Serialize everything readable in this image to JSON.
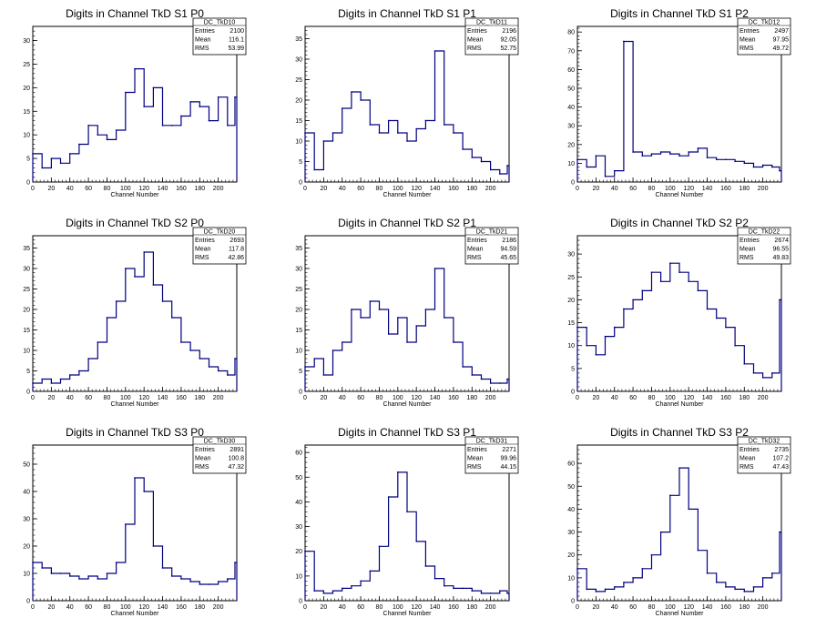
{
  "chart_data": [
    {
      "type": "histogram",
      "title": "Digits in Channel TkD S1 P0",
      "xlabel": "Channel Number",
      "ylabel": "",
      "xlim": [
        0,
        220
      ],
      "ylim": [
        0,
        33
      ],
      "yticks": [
        0,
        5,
        10,
        15,
        20,
        25,
        30
      ],
      "xticks": [
        0,
        20,
        40,
        60,
        80,
        100,
        120,
        140,
        160,
        180,
        200
      ],
      "line_color": "#000080",
      "stats": {
        "name": "DC_TkD10",
        "entries": "2100",
        "mean": "116.1",
        "rms": "53.99"
      },
      "x": [
        0,
        10,
        20,
        30,
        40,
        50,
        60,
        70,
        80,
        90,
        100,
        110,
        120,
        130,
        140,
        150,
        160,
        170,
        180,
        190,
        200,
        210,
        218
      ],
      "y": [
        6,
        3,
        5,
        4,
        6,
        8,
        12,
        10,
        9,
        11,
        19,
        24,
        16,
        20,
        12,
        12,
        14,
        17,
        16,
        13,
        18,
        12,
        18
      ]
    },
    {
      "type": "histogram",
      "title": "Digits in Channel TkD S1 P1",
      "xlabel": "Channel Number",
      "ylabel": "",
      "xlim": [
        0,
        220
      ],
      "ylim": [
        0,
        38
      ],
      "yticks": [
        0,
        5,
        10,
        15,
        20,
        25,
        30,
        35
      ],
      "xticks": [
        0,
        20,
        40,
        60,
        80,
        100,
        120,
        140,
        160,
        180,
        200
      ],
      "line_color": "#000080",
      "stats": {
        "name": "DC_TkD11",
        "entries": "2196",
        "mean": "92.05",
        "rms": "52.75"
      },
      "x": [
        0,
        10,
        20,
        30,
        40,
        50,
        60,
        70,
        80,
        90,
        100,
        110,
        120,
        130,
        140,
        150,
        160,
        170,
        180,
        190,
        200,
        210,
        218
      ],
      "y": [
        12,
        3,
        10,
        12,
        18,
        22,
        20,
        14,
        12,
        15,
        12,
        10,
        13,
        15,
        32,
        14,
        12,
        8,
        6,
        5,
        3,
        2,
        4
      ]
    },
    {
      "type": "histogram",
      "title": "Digits in Channel TkD S1 P2",
      "xlabel": "Channel Number",
      "ylabel": "",
      "xlim": [
        0,
        220
      ],
      "ylim": [
        0,
        83
      ],
      "yticks": [
        0,
        10,
        20,
        30,
        40,
        50,
        60,
        70,
        80
      ],
      "xticks": [
        0,
        20,
        40,
        60,
        80,
        100,
        120,
        140,
        160,
        180,
        200
      ],
      "line_color": "#000080",
      "stats": {
        "name": "DC_TkD12",
        "entries": "2497",
        "mean": "97.95",
        "rms": "49.72"
      },
      "x": [
        0,
        10,
        20,
        30,
        40,
        50,
        60,
        70,
        80,
        90,
        100,
        110,
        120,
        130,
        140,
        150,
        160,
        170,
        180,
        190,
        200,
        210,
        218
      ],
      "y": [
        12,
        8,
        14,
        3,
        6,
        75,
        16,
        14,
        15,
        16,
        15,
        14,
        16,
        18,
        13,
        12,
        12,
        11,
        10,
        8,
        9,
        8,
        6
      ]
    },
    {
      "type": "histogram",
      "title": "Digits in Channel TkD S2 P0",
      "xlabel": "Channel Number",
      "ylabel": "",
      "xlim": [
        0,
        220
      ],
      "ylim": [
        0,
        38
      ],
      "yticks": [
        0,
        5,
        10,
        15,
        20,
        25,
        30,
        35
      ],
      "xticks": [
        0,
        20,
        40,
        60,
        80,
        100,
        120,
        140,
        160,
        180,
        200
      ],
      "line_color": "#000080",
      "stats": {
        "name": "DC_TkD20",
        "entries": "2693",
        "mean": "117.8",
        "rms": "42.86"
      },
      "x": [
        0,
        10,
        20,
        30,
        40,
        50,
        60,
        70,
        80,
        90,
        100,
        110,
        120,
        130,
        140,
        150,
        160,
        170,
        180,
        190,
        200,
        210,
        218
      ],
      "y": [
        2,
        3,
        2,
        3,
        4,
        5,
        8,
        12,
        18,
        22,
        30,
        28,
        34,
        26,
        22,
        18,
        12,
        10,
        8,
        6,
        5,
        4,
        8
      ]
    },
    {
      "type": "histogram",
      "title": "Digits in Channel TkD S2 P1",
      "xlabel": "Channel Number",
      "ylabel": "",
      "xlim": [
        0,
        220
      ],
      "ylim": [
        0,
        38
      ],
      "yticks": [
        0,
        5,
        10,
        15,
        20,
        25,
        30,
        35
      ],
      "xticks": [
        0,
        20,
        40,
        60,
        80,
        100,
        120,
        140,
        160,
        180,
        200
      ],
      "line_color": "#000080",
      "stats": {
        "name": "DC_TkD21",
        "entries": "2186",
        "mean": "94.59",
        "rms": "45.65"
      },
      "x": [
        0,
        10,
        20,
        30,
        40,
        50,
        60,
        70,
        80,
        90,
        100,
        110,
        120,
        130,
        140,
        150,
        160,
        170,
        180,
        190,
        200,
        210,
        218
      ],
      "y": [
        6,
        8,
        4,
        10,
        12,
        20,
        18,
        22,
        20,
        14,
        18,
        12,
        16,
        20,
        30,
        18,
        12,
        6,
        4,
        3,
        2,
        2,
        3
      ]
    },
    {
      "type": "histogram",
      "title": "Digits in Channel TkD S2 P2",
      "xlabel": "Channel Number",
      "ylabel": "",
      "xlim": [
        0,
        220
      ],
      "ylim": [
        0,
        34
      ],
      "yticks": [
        0,
        5,
        10,
        15,
        20,
        25,
        30
      ],
      "xticks": [
        0,
        20,
        40,
        60,
        80,
        100,
        120,
        140,
        160,
        180,
        200
      ],
      "line_color": "#000080",
      "stats": {
        "name": "DC_TkD22",
        "entries": "2674",
        "mean": "96.55",
        "rms": "49.83"
      },
      "x": [
        0,
        10,
        20,
        30,
        40,
        50,
        60,
        70,
        80,
        90,
        100,
        110,
        120,
        130,
        140,
        150,
        160,
        170,
        180,
        190,
        200,
        210,
        218
      ],
      "y": [
        14,
        10,
        8,
        12,
        14,
        18,
        20,
        22,
        26,
        24,
        28,
        26,
        24,
        22,
        18,
        16,
        14,
        10,
        6,
        4,
        3,
        4,
        20
      ]
    },
    {
      "type": "histogram",
      "title": "Digits in Channel TkD S3 P0",
      "xlabel": "Channel Number",
      "ylabel": "",
      "xlim": [
        0,
        220
      ],
      "ylim": [
        0,
        57
      ],
      "yticks": [
        0,
        10,
        20,
        30,
        40,
        50
      ],
      "xticks": [
        0,
        20,
        40,
        60,
        80,
        100,
        120,
        140,
        160,
        180,
        200
      ],
      "line_color": "#000080",
      "stats": {
        "name": "DC_TkD30",
        "entries": "2891",
        "mean": "100.8",
        "rms": "47.32"
      },
      "x": [
        0,
        10,
        20,
        30,
        40,
        50,
        60,
        70,
        80,
        90,
        100,
        110,
        120,
        130,
        140,
        150,
        160,
        170,
        180,
        190,
        200,
        210,
        218
      ],
      "y": [
        14,
        12,
        10,
        10,
        9,
        8,
        9,
        8,
        10,
        14,
        28,
        45,
        40,
        20,
        12,
        9,
        8,
        7,
        6,
        6,
        7,
        8,
        14
      ]
    },
    {
      "type": "histogram",
      "title": "Digits in Channel TkD S3 P1",
      "xlabel": "Channel Number",
      "ylabel": "",
      "xlim": [
        0,
        220
      ],
      "ylim": [
        0,
        63
      ],
      "yticks": [
        0,
        10,
        20,
        30,
        40,
        50,
        60
      ],
      "xticks": [
        0,
        20,
        40,
        60,
        80,
        100,
        120,
        140,
        160,
        180,
        200
      ],
      "line_color": "#000080",
      "stats": {
        "name": "DC_TkD31",
        "entries": "2271",
        "mean": "99.96",
        "rms": "44.15"
      },
      "x": [
        0,
        10,
        20,
        30,
        40,
        50,
        60,
        70,
        80,
        90,
        100,
        110,
        120,
        130,
        140,
        150,
        160,
        170,
        180,
        190,
        200,
        210,
        218
      ],
      "y": [
        20,
        4,
        3,
        4,
        5,
        6,
        8,
        12,
        22,
        42,
        52,
        36,
        24,
        14,
        9,
        6,
        5,
        5,
        4,
        3,
        3,
        4,
        3
      ]
    },
    {
      "type": "histogram",
      "title": "Digits in Channel TkD S3 P2",
      "xlabel": "Channel Number",
      "ylabel": "",
      "xlim": [
        0,
        220
      ],
      "ylim": [
        0,
        68
      ],
      "yticks": [
        0,
        10,
        20,
        30,
        40,
        50,
        60
      ],
      "xticks": [
        0,
        20,
        40,
        60,
        80,
        100,
        120,
        140,
        160,
        180,
        200
      ],
      "line_color": "#000080",
      "stats": {
        "name": "DC_TkD32",
        "entries": "2735",
        "mean": "107.2",
        "rms": "47.43"
      },
      "x": [
        0,
        10,
        20,
        30,
        40,
        50,
        60,
        70,
        80,
        90,
        100,
        110,
        120,
        130,
        140,
        150,
        160,
        170,
        180,
        190,
        200,
        210,
        218
      ],
      "y": [
        14,
        5,
        4,
        5,
        6,
        8,
        10,
        14,
        20,
        30,
        46,
        58,
        40,
        22,
        12,
        8,
        6,
        5,
        4,
        6,
        10,
        12,
        30
      ]
    }
  ],
  "stat_labels": {
    "entries": "Entries",
    "mean": "Mean",
    "rms": "RMS"
  }
}
